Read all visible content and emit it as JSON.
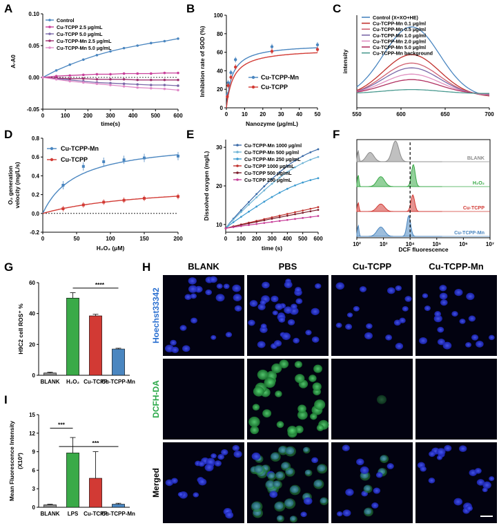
{
  "panel_letters": [
    "A",
    "B",
    "C",
    "D",
    "E",
    "F",
    "G",
    "H",
    "I"
  ],
  "colors": {
    "blue": "#4a86c0",
    "pink": "#d050a0",
    "purple": "#7a68a8",
    "lightblue": "#5fb7dc",
    "red": "#d23a34",
    "darkred": "#8b1420",
    "green": "#3aaa48",
    "gray": "#8c8c8c"
  },
  "chart_data": [
    {
      "id": "A",
      "type": "line",
      "xlabel": "time(s)",
      "ylabel": "A-A0",
      "xlim": [
        0,
        600
      ],
      "ylim": [
        -0.05,
        0.1
      ],
      "xticks": [
        0,
        100,
        200,
        300,
        400,
        500,
        600
      ],
      "yticks": [
        -0.05,
        0.0,
        0.05,
        0.1
      ],
      "ytick_labels": [
        "-0.05",
        "0.00",
        "0.05",
        "0.10"
      ],
      "x": [
        0,
        60,
        120,
        180,
        240,
        300,
        360,
        420,
        480,
        540,
        600
      ],
      "series": [
        {
          "name": "Control",
          "color": "#4a86c0",
          "values": [
            0,
            0.011,
            0.02,
            0.028,
            0.035,
            0.041,
            0.046,
            0.05,
            0.054,
            0.057,
            0.061
          ]
        },
        {
          "name": "Cu-TCPP 2.5 μg/mL",
          "color": "#c8409a",
          "values": [
            0,
            0.002,
            0.003,
            0.004,
            0.005,
            0.005,
            0.006,
            0.006,
            0.006,
            0.007,
            0.007
          ]
        },
        {
          "name": "Cu-TCPP 5.0  μg/mL",
          "color": "#7a68a8",
          "values": [
            0,
            -0.002,
            -0.004,
            -0.006,
            -0.008,
            -0.009,
            -0.01,
            -0.011,
            -0.012,
            -0.012,
            -0.013
          ]
        },
        {
          "name": "Cu-TCPP-Mn 2.5 μg/mL",
          "color": "#a03070",
          "values": [
            0,
            -0.001,
            -0.002,
            -0.002,
            -0.003,
            -0.003,
            -0.003,
            -0.004,
            -0.004,
            -0.004,
            -0.004
          ]
        },
        {
          "name": "Cu-TCPP-Mn 5.0 μg/mL",
          "color": "#e08ac8",
          "values": [
            0,
            -0.003,
            -0.006,
            -0.008,
            -0.01,
            -0.012,
            -0.014,
            -0.016,
            -0.017,
            -0.018,
            -0.02
          ]
        }
      ]
    },
    {
      "id": "B",
      "type": "line",
      "xlabel": "Nanozyme (μg/mL)",
      "ylabel": "Inhibition rate of SOD (%)",
      "xlim": [
        0,
        50
      ],
      "ylim": [
        0,
        100
      ],
      "xticks": [
        0,
        10,
        20,
        30,
        40,
        50
      ],
      "yticks": [
        0,
        20,
        40,
        60,
        80,
        100
      ],
      "x": [
        0.5,
        1,
        2.5,
        5,
        25,
        50
      ],
      "series": [
        {
          "name": "Cu-TCPP-Mn",
          "color": "#4a86c0",
          "values": [
            14,
            27,
            38,
            52,
            66,
            68
          ]
        },
        {
          "name": "Cu-TCPP",
          "color": "#d23a34",
          "values": [
            12,
            24,
            33,
            44,
            61,
            63
          ]
        }
      ]
    },
    {
      "id": "C",
      "type": "line",
      "xlabel": "",
      "ylabel": "intensity",
      "xlim": [
        550,
        700
      ],
      "ylim": [
        0,
        1
      ],
      "xticks": [
        550,
        600,
        650,
        700
      ],
      "series": [
        {
          "name": "Control (X+XO+HE)",
          "color": "#4a86c0",
          "peak": 1.0
        },
        {
          "name": "Cu-TCPP-Mn 0.1 μg/ml",
          "color": "#c0302c",
          "peak": 0.62
        },
        {
          "name": "Cu-TCPP-Mn 0.5 μg/ml",
          "color": "#d06070",
          "peak": 0.5
        },
        {
          "name": "Cu-TCPP-Mn 1.0 μg/ml",
          "color": "#7a68a8",
          "peak": 0.43
        },
        {
          "name": "Cu-TCPP-Mn 2.0 μg/ml",
          "color": "#e090c0",
          "peak": 0.34
        },
        {
          "name": "Cu-TCPP-Mn 5.0 μg/ml",
          "color": "#b03060",
          "peak": 0.26
        },
        {
          "name": "Cu-TCPP-Mn background",
          "color": "#4a9a90",
          "peak": 0.12
        }
      ]
    },
    {
      "id": "D",
      "type": "scatter",
      "xlabel": "H₂O₂ (μM)",
      "ylabel_lines": [
        "O₂ generation",
        "velocity (mg/L/s)"
      ],
      "xlim": [
        0,
        200
      ],
      "ylim": [
        -0.2,
        0.8
      ],
      "xticks": [
        0,
        50,
        100,
        150,
        200
      ],
      "yticks": [
        -0.2,
        0.0,
        0.2,
        0.4,
        0.6,
        0.8
      ],
      "ytick_labels": [
        "-0.2",
        "0.0",
        "0.2",
        "0.4",
        "0.6",
        "0.8"
      ],
      "x": [
        0,
        30,
        60,
        90,
        120,
        150,
        200
      ],
      "series": [
        {
          "name": "Cu-TCPP-Mn",
          "color": "#4a86c0",
          "values": [
            0,
            0.3,
            0.5,
            0.55,
            0.57,
            0.59,
            0.61
          ],
          "vmax": 0.78,
          "km": 50
        },
        {
          "name": "Cu-TCPP",
          "color": "#d23a34",
          "values": [
            0,
            0.05,
            0.09,
            0.12,
            0.14,
            0.16,
            0.18
          ],
          "vmax": 0.33,
          "km": 160
        }
      ]
    },
    {
      "id": "E",
      "type": "line",
      "xlabel": "time (s)",
      "ylabel": "Dissolved oxygen (mg/L)",
      "xlim": [
        0,
        600
      ],
      "ylim": [
        8,
        32
      ],
      "xticks": [
        0,
        100,
        200,
        300,
        400,
        500,
        600
      ],
      "yticks": [
        10,
        20,
        30
      ],
      "series": [
        {
          "name": "Cu-TCPP-Mn 1000 μg/ml",
          "color": "#3a6aa8",
          "end": 29.5,
          "shape": 1.6
        },
        {
          "name": "Cu-TCPP-Mn 500 μg/ml",
          "color": "#6fb4d6",
          "end": 27.5,
          "shape": 1.5
        },
        {
          "name": "Cu-TCPP-Mn 250 μg/mL",
          "color": "#3a9ad0",
          "end": 22.0,
          "shape": 1.3
        },
        {
          "name": "Cu-TCPP 1000 μg/mL",
          "color": "#c0302c",
          "end": 14.5,
          "shape": 1.0
        },
        {
          "name": "Cu-TCPP 500 μg/mL",
          "color": "#7a1c2a",
          "end": 13.8,
          "shape": 1.0
        },
        {
          "name": "Cu-TCPP 250 μg/mL",
          "color": "#c8409a",
          "end": 12.2,
          "shape": 1.0
        }
      ]
    },
    {
      "id": "F",
      "type": "area",
      "xlabel": "DCF fluorescence",
      "xtick_labels": [
        "10²",
        "10³",
        "10⁴",
        "10⁵",
        "10⁶",
        "10⁷"
      ],
      "threshold": 10000,
      "series": [
        {
          "name": "BLANK",
          "color": "#8c8c8c"
        },
        {
          "name": "H₂O₂",
          "color": "#3aaa48"
        },
        {
          "name": "Cu-TCPP",
          "color": "#d23a34"
        },
        {
          "name": "Cu-TCPP-Mn",
          "color": "#4a86c0"
        }
      ]
    },
    {
      "id": "G",
      "type": "bar",
      "ylabel": "H9C2 cell ROS⁺ %",
      "categories": [
        "BLANK",
        "H₂O₂",
        "Cu-TCPP",
        "Cu-TCPP-Mn"
      ],
      "values": [
        1.5,
        50,
        38.5,
        17
      ],
      "errors": [
        0.5,
        3.5,
        1.0,
        0.5
      ],
      "colors": [
        "#8c8c8c",
        "#3aaa48",
        "#d23a34",
        "#4a86c0"
      ],
      "ylim": [
        0,
        60
      ],
      "yticks": [
        0,
        20,
        40,
        60
      ],
      "significance": "****"
    },
    {
      "id": "I",
      "type": "bar",
      "ylabel": "Mean Fluorescence Intensity",
      "ylabel_sub": "(X10³)",
      "categories": [
        "BLANK",
        "LPS",
        "Cu-TCPP",
        "Cu-TCPP-Mn"
      ],
      "values": [
        0.4,
        8.8,
        4.7,
        0.5
      ],
      "errors": [
        0.1,
        2.5,
        4.3,
        0.15
      ],
      "colors": [
        "#8c8c8c",
        "#3aaa48",
        "#d23a34",
        "#4a86c0"
      ],
      "ylim": [
        0,
        15
      ],
      "yticks": [
        0,
        3,
        6,
        9,
        12,
        15
      ],
      "significance": [
        "***",
        "***"
      ]
    }
  ],
  "panel_H": {
    "columns": [
      "BLANK",
      "PBS",
      "Cu-TCPP",
      "Cu-TCPP-Mn"
    ],
    "rows": [
      "Hoechst33342",
      "DCFH-DA",
      "Merged"
    ]
  }
}
